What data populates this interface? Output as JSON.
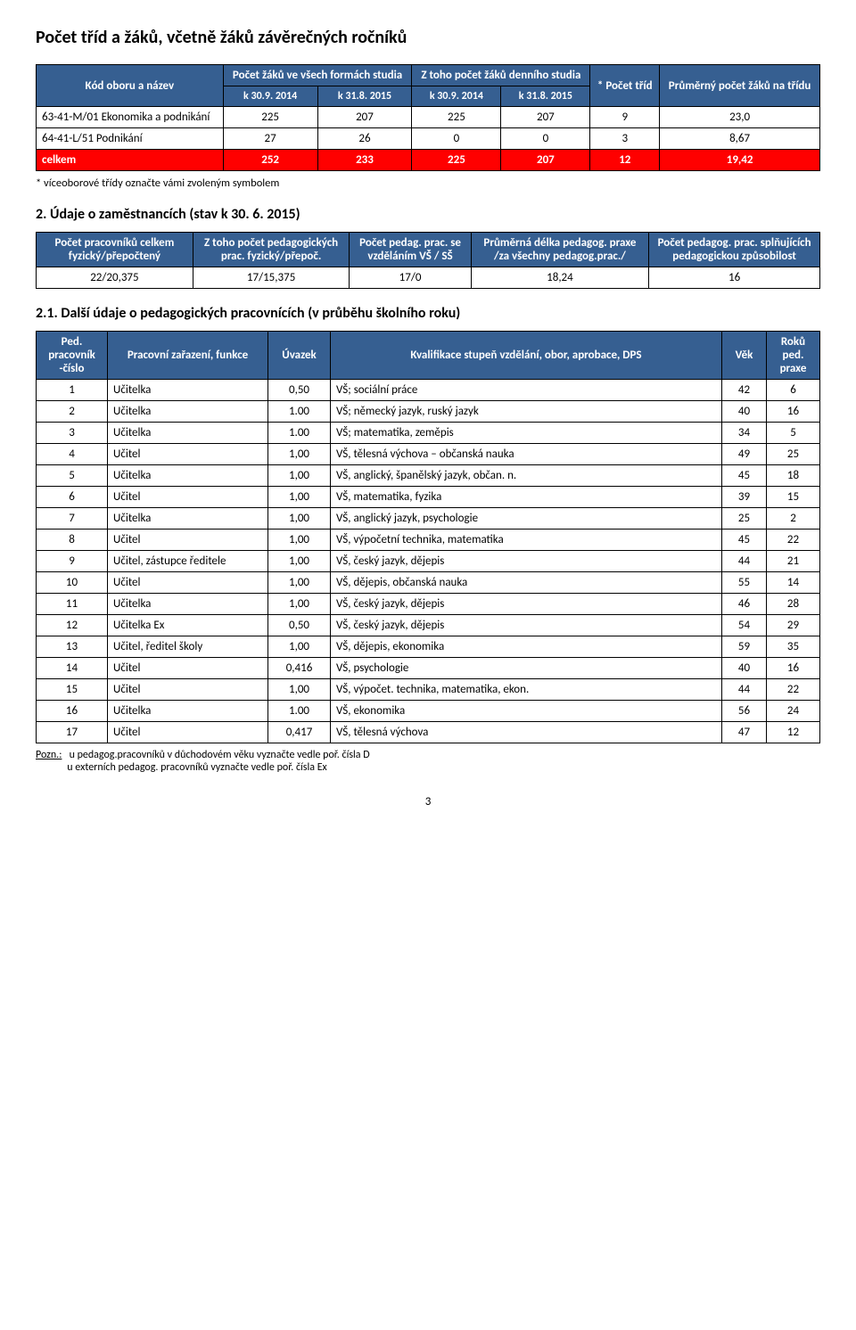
{
  "title": "Počet tříd a žáků, včetně žáků závěrečných ročníků",
  "table1": {
    "headers": {
      "c1": "Kód oboru a název",
      "c2": "Počet žáků ve všech formách studia",
      "c3": "Z toho počet žáků denního studia",
      "c4": "* Počet tříd",
      "c5": "Průměrný počet žáků na třídu",
      "sub_a": "k 30.9. 2014",
      "sub_b": "k 31.8. 2015",
      "sub_c": "k 30.9. 2014",
      "sub_d": "k 31.8. 2015"
    },
    "rows": [
      {
        "name": "63-41-M/01 Ekonomika a podnikání",
        "a": "225",
        "b": "207",
        "c": "225",
        "d": "207",
        "trid": "9",
        "avg": "23,0",
        "hl": false
      },
      {
        "name": "64-41-L/51 Podnikání",
        "a": "27",
        "b": "26",
        "c": "0",
        "d": "0",
        "trid": "3",
        "avg": "8,67",
        "hl": false
      },
      {
        "name": "celkem",
        "a": "252",
        "b": "233",
        "c": "225",
        "d": "207",
        "trid": "12",
        "avg": "19,42",
        "hl": true
      }
    ],
    "note": "* víceoborové třídy označte vámi zvoleným symbolem"
  },
  "section2_title": "2.   Údaje o zaměstnancích (stav k 30. 6. 2015)",
  "table2": {
    "headers": {
      "c1": "Počet pracovníků celkem fyzický/přepočtený",
      "c2": "Z toho počet pedagogických prac. fyzický/přepoč.",
      "c3": "Počet pedag. prac. se vzděláním VŠ / SŠ",
      "c4": "Průměrná délka pedagog. praxe /za všechny pedagog.prac./",
      "c5": "Počet pedagog. prac. splňujících pedagogickou způsobilost"
    },
    "row": {
      "v1": "22/20,375",
      "v2": "17/15,375",
      "v3": "17/0",
      "v4": "18,24",
      "v5": "16"
    }
  },
  "section21_title": "2.1.   Další údaje o pedagogických pracovnících (v průběhu školního roku)",
  "table3": {
    "headers": {
      "c1": "Ped. pracovník -číslo",
      "c2": "Pracovní zařazení, funkce",
      "c3": "Úvazek",
      "c4": "Kvalifikace stupeň vzdělání, obor, aprobace, DPS",
      "c5": "Věk",
      "c6": "Roků ped. praxe"
    },
    "rows": [
      {
        "n": "1",
        "f": "Učitelka",
        "u": "0,50",
        "k": "VŠ; sociální práce",
        "v": "42",
        "p": "6"
      },
      {
        "n": "2",
        "f": "Učitelka",
        "u": "1.00",
        "k": "VŠ; německý jazyk, ruský jazyk",
        "v": "40",
        "p": "16"
      },
      {
        "n": "3",
        "f": "Učitelka",
        "u": "1.00",
        "k": "VŠ; matematika, zeměpis",
        "v": "34",
        "p": "5"
      },
      {
        "n": "4",
        "f": "Učitel",
        "u": "1,00",
        "k": "VŠ, tělesná výchova – občanská nauka",
        "v": "49",
        "p": "25"
      },
      {
        "n": "5",
        "f": "Učitelka",
        "u": "1,00",
        "k": "VŠ, anglický, španělský jazyk, občan. n.",
        "v": "45",
        "p": "18"
      },
      {
        "n": "6",
        "f": "Učitel",
        "u": "1,00",
        "k": "VŠ, matematika, fyzika",
        "v": "39",
        "p": "15"
      },
      {
        "n": "7",
        "f": "Učitelka",
        "u": "1,00",
        "k": "VŠ, anglický jazyk, psychologie",
        "v": "25",
        "p": "2"
      },
      {
        "n": "8",
        "f": "Učitel",
        "u": "1,00",
        "k": "VŠ, výpočetní technika, matematika",
        "v": "45",
        "p": "22"
      },
      {
        "n": "9",
        "f": "Učitel, zástupce ředitele",
        "u": "1,00",
        "k": "VŠ, český jazyk, dějepis",
        "v": "44",
        "p": "21"
      },
      {
        "n": "10",
        "f": "Učitel",
        "u": "1,00",
        "k": "VŠ, dějepis, občanská nauka",
        "v": "55",
        "p": "14"
      },
      {
        "n": "11",
        "f": "Učitelka",
        "u": "1,00",
        "k": "VŠ, český jazyk, dějepis",
        "v": "46",
        "p": "28"
      },
      {
        "n": "12",
        "f": "Učitelka Ex",
        "u": "0,50",
        "k": "VŠ, český jazyk, dějepis",
        "v": "54",
        "p": "29"
      },
      {
        "n": "13",
        "f": "Učitel, ředitel školy",
        "u": "1,00",
        "k": "VŠ, dějepis, ekonomika",
        "v": "59",
        "p": "35"
      },
      {
        "n": "14",
        "f": "Učitel",
        "u": "0,416",
        "k": "VŠ, psychologie",
        "v": "40",
        "p": "16"
      },
      {
        "n": "15",
        "f": "Učitel",
        "u": "1,00",
        "k": "VŠ, výpočet. technika, matematika, ekon.",
        "v": "44",
        "p": "22"
      },
      {
        "n": "16",
        "f": "Učitelka",
        "u": "1.00",
        "k": "VŠ, ekonomika",
        "v": "56",
        "p": "24"
      },
      {
        "n": "17",
        "f": "Učitel",
        "u": "0,417",
        "k": "VŠ, tělesná výchova",
        "v": "47",
        "p": "12"
      }
    ]
  },
  "footnote_label": "Pozn.:",
  "footnote_line1": "u pedagog.pracovníků v důchodovém věku vyznačte vedle poř. čísla  D",
  "footnote_line2": "u externích  pedagog. pracovníků vyznačte vedle poř. čísla Ex",
  "page_number": "3"
}
